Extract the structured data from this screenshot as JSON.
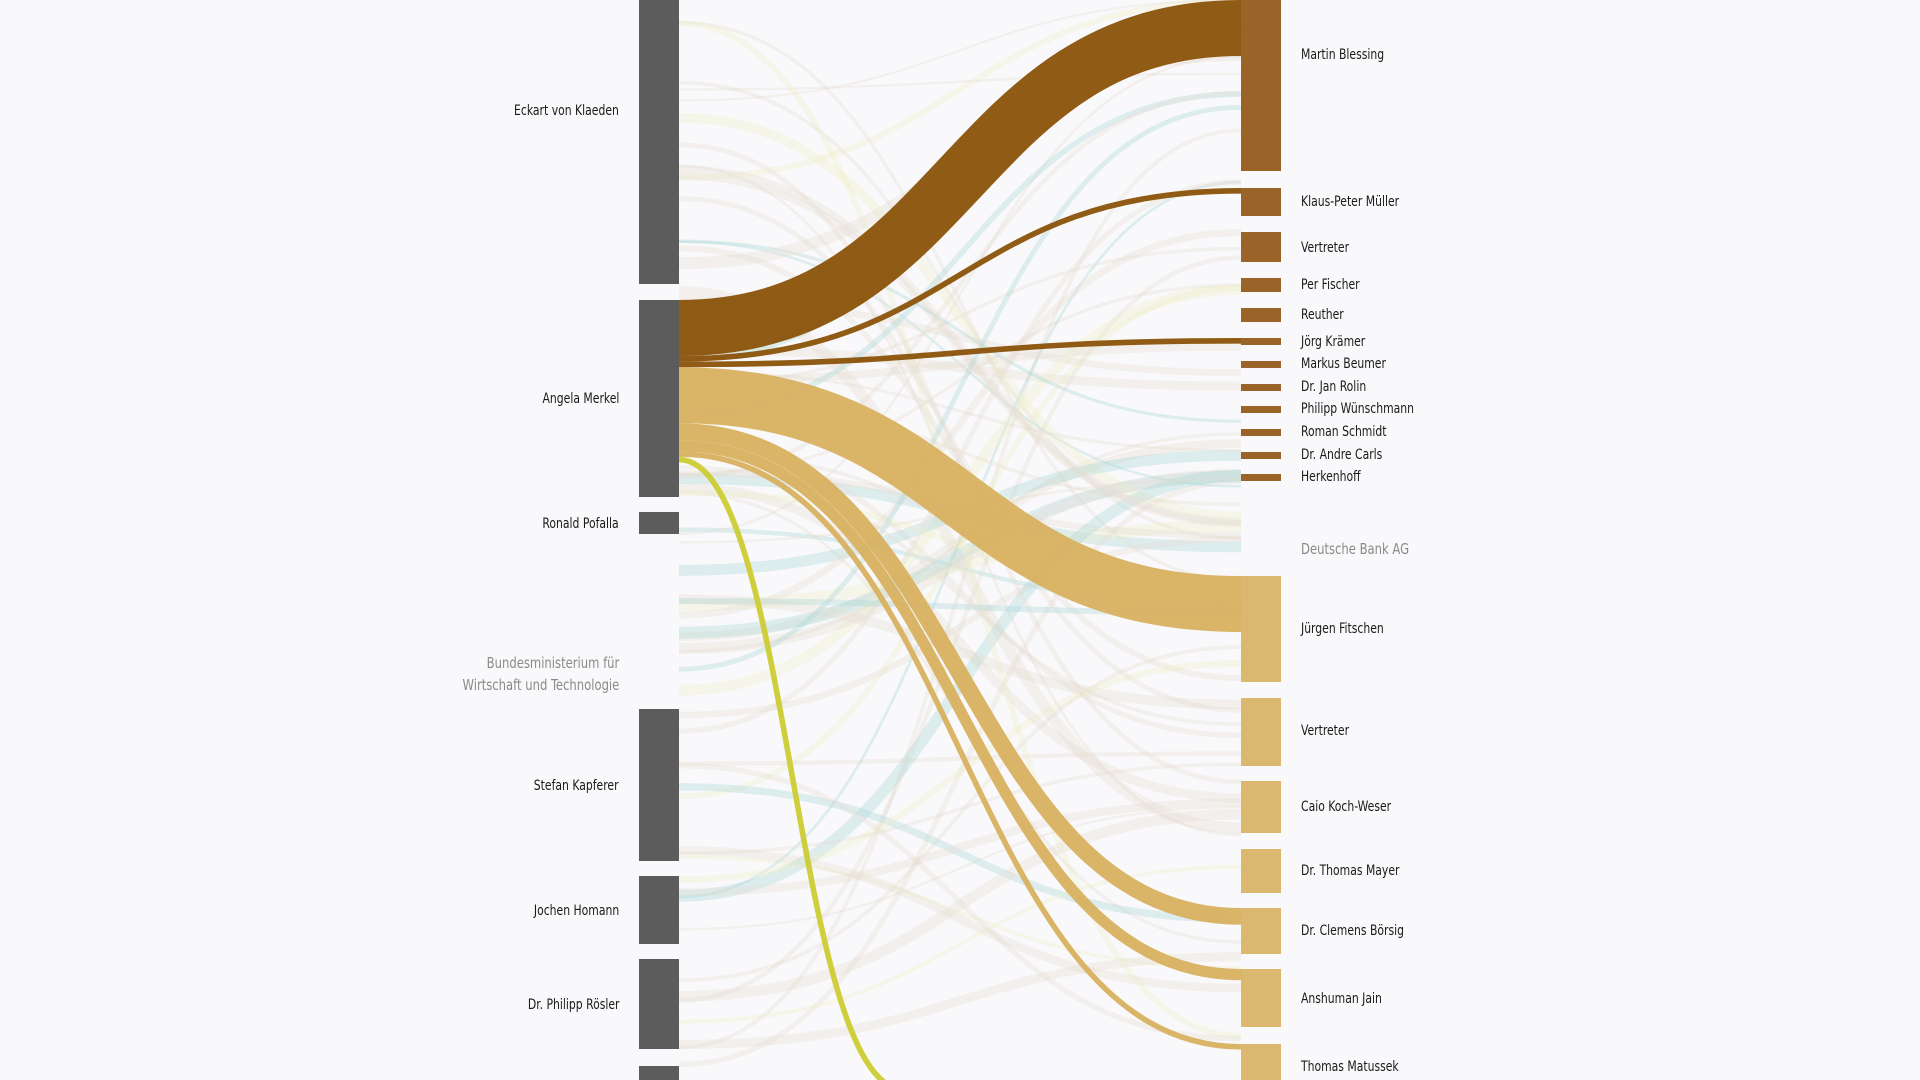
{
  "left_nodes": [
    {
      "label": "Eckart von Klaeden"
    },
    {
      "label": "Angela Merkel"
    },
    {
      "label": "Ronald Pofalla"
    },
    {
      "label": "Stefan Kapferer"
    },
    {
      "label": "Jochen Homann"
    },
    {
      "label": "Dr. Philipp Rösler"
    },
    {
      "label": ""
    }
  ],
  "left_group": "Bundesministerium für\nWirtschaft und Technologie",
  "right_group": "Deutsche Bank AG",
  "right_nodes": [
    {
      "label": "Martin Blessing",
      "org": "commerzbank"
    },
    {
      "label": "Klaus-Peter Müller",
      "org": "commerzbank"
    },
    {
      "label": "Vertreter",
      "org": "commerzbank"
    },
    {
      "label": "Per Fischer",
      "org": "commerzbank"
    },
    {
      "label": "Reuther",
      "org": "commerzbank"
    },
    {
      "label": "Jörg Krämer",
      "org": "commerzbank"
    },
    {
      "label": "Markus Beumer",
      "org": "commerzbank"
    },
    {
      "label": "Dr. Jan Rolin",
      "org": "commerzbank"
    },
    {
      "label": "Philipp Wünschmann",
      "org": "commerzbank"
    },
    {
      "label": "Roman Schmidt",
      "org": "commerzbank"
    },
    {
      "label": "Dr. Andre Carls",
      "org": "commerzbank"
    },
    {
      "label": "Herkenhoff",
      "org": "commerzbank"
    },
    {
      "label": "Jürgen Fitschen",
      "org": "deutsche-bank"
    },
    {
      "label": "Vertreter",
      "org": "deutsche-bank"
    },
    {
      "label": "Caio Koch-Weser",
      "org": "deutsche-bank"
    },
    {
      "label": "Dr. Thomas Mayer",
      "org": "deutsche-bank"
    },
    {
      "label": "Dr. Clemens Börsig",
      "org": "deutsche-bank"
    },
    {
      "label": "Anshuman Jain",
      "org": "deutsche-bank"
    },
    {
      "label": "Thomas Matussek",
      "org": "deutsche-bank"
    }
  ],
  "highlighted_flows": [
    {
      "from": "Angela Merkel",
      "to": "Martin Blessing",
      "value": 10,
      "color": "#8a5208"
    },
    {
      "from": "Angela Merkel",
      "to": "Klaus-Peter Müller",
      "value": 1,
      "color": "#8a5208"
    },
    {
      "from": "Angela Merkel",
      "to": "Jörg Krämer",
      "value": 1,
      "color": "#8a5208"
    },
    {
      "from": "Angela Merkel",
      "to": "Jürgen Fitschen",
      "value": 10,
      "color": "#d8b160"
    },
    {
      "from": "Angela Merkel",
      "to": "Dr. Clemens Börsig",
      "value": 3,
      "color": "#d8b160"
    },
    {
      "from": "Angela Merkel",
      "to": "Anshuman Jain",
      "value": 2,
      "color": "#d8b160"
    },
    {
      "from": "Angela Merkel",
      "to": "Thomas Matussek",
      "value": 1,
      "color": "#d8b160"
    },
    {
      "from": "Angela Merkel",
      "to": "other",
      "value": 1,
      "color": "#cccc33"
    }
  ],
  "colors": {
    "left_node": "#5c5c5c",
    "commerzbank_node": "#9a6328",
    "deutsche_bank_node": "#dab870",
    "commerzbank_flow": "#8a5208",
    "deutsche_bank_flow": "#d8b160",
    "accent_flow": "#cccc33",
    "accent_flow_2": "#a8d8d8",
    "faint_flow": "#e5dcd0",
    "background": "#f9f9fb"
  }
}
